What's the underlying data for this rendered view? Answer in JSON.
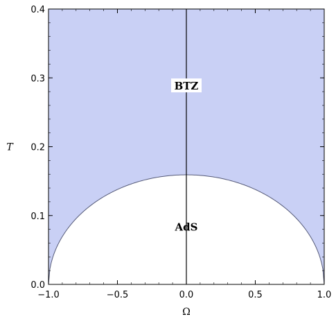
{
  "chart_data": {
    "type": "area",
    "title": "",
    "xlabel": "Ω",
    "ylabel": "T",
    "xlim": [
      -1.0,
      1.0
    ],
    "ylim": [
      0.0,
      0.4
    ],
    "x_ticks": [
      -1.0,
      -0.5,
      0.0,
      0.5,
      1.0
    ],
    "x_tick_labels": [
      "−1.0",
      "−0.5",
      "0.0",
      "0.5",
      "1.0"
    ],
    "y_ticks": [
      0.0,
      0.1,
      0.2,
      0.3,
      0.4
    ],
    "y_tick_labels": [
      "0.0",
      "0.1",
      "0.2",
      "0.3",
      "0.4"
    ],
    "boundary": {
      "description_formula": "T = sqrt(1 - Ω^2) / (2π)",
      "peak": {
        "x": 0.0,
        "y": 0.159
      },
      "endpoints": [
        {
          "x": -1.0,
          "y": 0.0
        },
        {
          "x": 1.0,
          "y": 0.0
        }
      ]
    },
    "regions": [
      {
        "label": "BTZ",
        "x": 0.0,
        "y": 0.285,
        "fill": "#c9d0f5"
      },
      {
        "label": "AdS",
        "x": 0.0,
        "y": 0.08,
        "fill": "#ffffff"
      }
    ],
    "vertical_line_x": 0.0,
    "grid": false,
    "colors": {
      "btz_fill": "#c9d0f5",
      "boundary": "#555a78",
      "axis": "#000000"
    }
  }
}
